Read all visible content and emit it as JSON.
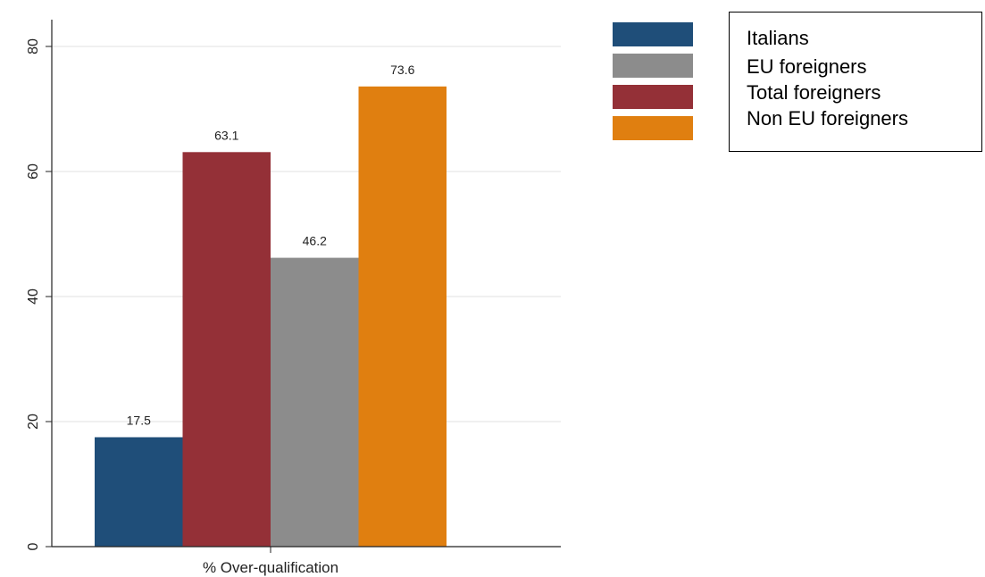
{
  "chart_data": {
    "type": "bar",
    "categories": [
      "% Over-qualification"
    ],
    "series": [
      {
        "name": "Italians",
        "values": [
          17.5
        ],
        "color": "#1f4e79"
      },
      {
        "name": "Total foreigners",
        "values": [
          63.1
        ],
        "color": "#943037"
      },
      {
        "name": "EU foreigners",
        "values": [
          46.2
        ],
        "color": "#8c8c8c"
      },
      {
        "name": "Non EU foreigners",
        "values": [
          73.6
        ],
        "color": "#e07f10"
      }
    ],
    "data_labels": [
      "17.5",
      "63.1",
      "46.2",
      "73.6"
    ],
    "xlabel": "% Over-qualification",
    "ylabel": "",
    "ylim": [
      0,
      80
    ],
    "yticks": [
      0,
      20,
      40,
      60,
      80
    ],
    "grid": true,
    "legend": {
      "position": "top-right",
      "entries": [
        {
          "label": "Italians",
          "color": "#1f4e79"
        },
        {
          "label": "EU foreigners",
          "color": "#8c8c8c"
        },
        {
          "label": "Total foreigners",
          "color": "#943037"
        },
        {
          "label": "Non EU foreigners",
          "color": "#e07f10"
        }
      ]
    }
  }
}
